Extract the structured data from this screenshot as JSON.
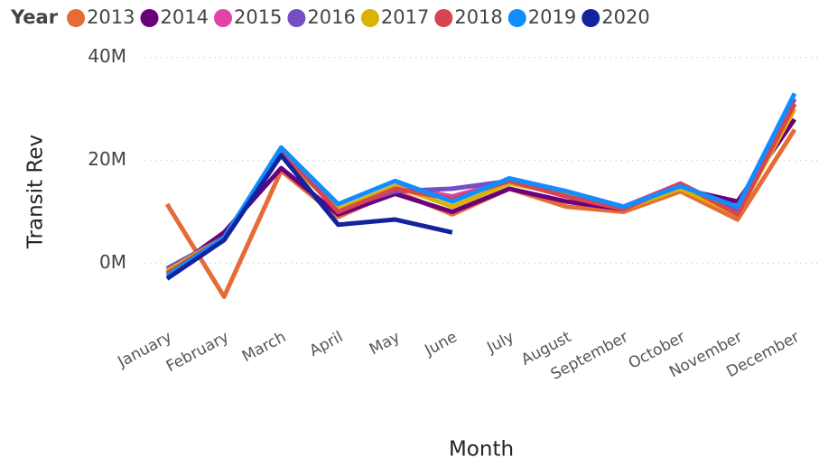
{
  "chart_data": {
    "type": "line",
    "legend_title": "Year",
    "y_label": "Transit Rev",
    "x_label": "Month",
    "categories": [
      "January",
      "February",
      "March",
      "April",
      "May",
      "June",
      "July",
      "August",
      "September",
      "October",
      "November",
      "December"
    ],
    "ylim": [
      -8000000,
      41000000
    ],
    "yticks": [
      {
        "value": 0,
        "label": "0M"
      },
      {
        "value": 20000000,
        "label": "20M"
      },
      {
        "value": 40000000,
        "label": "40M"
      }
    ],
    "grid": true,
    "legend": "top",
    "series": [
      {
        "name": "2013",
        "color": "#e66c37",
        "values": [
          11500000,
          -6500000,
          18000000,
          9000000,
          14000000,
          9500000,
          14500000,
          11000000,
          10000000,
          14000000,
          8500000,
          26000000
        ]
      },
      {
        "name": "2014",
        "color": "#6b007b",
        "values": [
          -2000000,
          6000000,
          18500000,
          9500000,
          13500000,
          10000000,
          14500000,
          12000000,
          10500000,
          14500000,
          12000000,
          28000000
        ]
      },
      {
        "name": "2015",
        "color": "#e044a7",
        "values": [
          -1500000,
          5000000,
          22000000,
          10000000,
          15000000,
          13000000,
          16000000,
          13000000,
          11000000,
          15500000,
          10000000,
          31000000
        ]
      },
      {
        "name": "2016",
        "color": "#744ec2",
        "values": [
          -1000000,
          5000000,
          22000000,
          10500000,
          14000000,
          14500000,
          16000000,
          14000000,
          11000000,
          15000000,
          10000000,
          32000000
        ]
      },
      {
        "name": "2017",
        "color": "#d9b300",
        "values": [
          -1500000,
          5000000,
          21000000,
          10500000,
          15000000,
          11000000,
          15500000,
          13500000,
          10500000,
          14500000,
          9500000,
          30000000
        ]
      },
      {
        "name": "2018",
        "color": "#d64550",
        "values": [
          -2000000,
          5000000,
          22000000,
          10000000,
          14500000,
          12500000,
          16000000,
          13000000,
          10500000,
          15500000,
          9500000,
          31000000
        ]
      },
      {
        "name": "2019",
        "color": "#118dff",
        "values": [
          -2500000,
          5000000,
          22500000,
          11500000,
          16000000,
          12000000,
          16500000,
          14000000,
          11000000,
          15000000,
          11000000,
          33000000
        ]
      },
      {
        "name": "2020",
        "color": "#12239e",
        "values": [
          -3000000,
          4500000,
          21000000,
          7500000,
          8500000,
          6000000,
          null,
          null,
          null,
          null,
          null,
          null
        ]
      }
    ]
  }
}
